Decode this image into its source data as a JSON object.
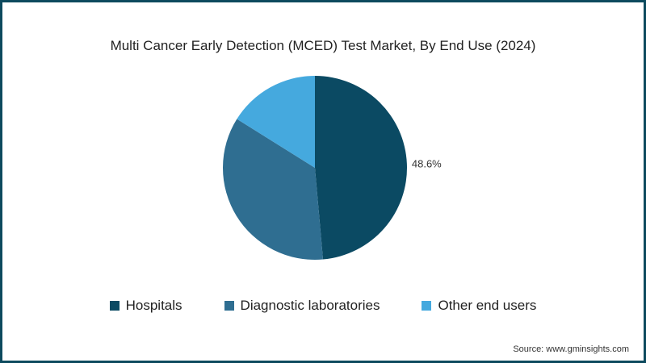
{
  "chart_data": {
    "type": "pie",
    "title": "Multi Cancer Early Detection (MCED) Test Market, By End Use (2024)",
    "slices": [
      {
        "label": "Hospitals",
        "value": 48.6,
        "color": "#0b4a63",
        "data_label": "48.6%"
      },
      {
        "label": "Diagnostic laboratories",
        "value": 35.3,
        "color": "#2f6e91"
      },
      {
        "label": "Other end users",
        "value": 16.1,
        "color": "#45a9de"
      }
    ],
    "legend_position": "bottom"
  },
  "source": "Source: www.gminsights.com"
}
